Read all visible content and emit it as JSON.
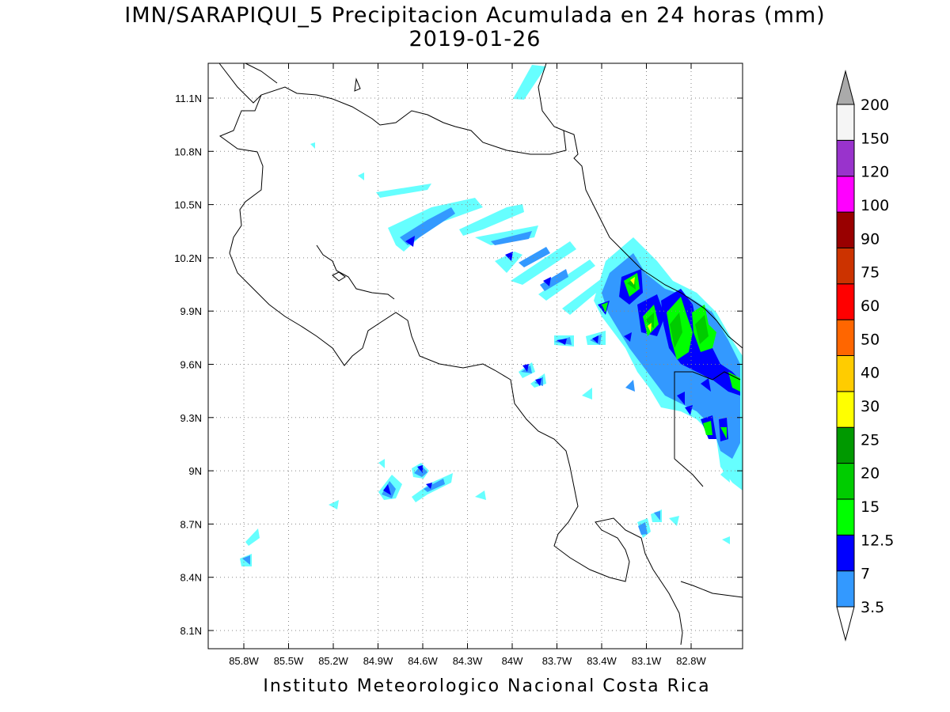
{
  "title": "IMN/SARAPIQUI_5 Precipitacion Acumulada en 24 horas (mm)",
  "date": "2019-01-26",
  "credit": "Instituto Meteorologico Nacional Costa Rica",
  "map": {
    "lon_ticks": [
      "85.8W",
      "85.5W",
      "85.2W",
      "84.9W",
      "84.6W",
      "84.3W",
      "84W",
      "83.7W",
      "83.4W",
      "83.1W",
      "82.8W"
    ],
    "lat_ticks": [
      "11.1N",
      "10.8N",
      "10.5N",
      "10.2N",
      "9.9N",
      "9.6N",
      "9.3N",
      "9N",
      "8.7N",
      "8.4N",
      "8.1N"
    ],
    "grid": true
  },
  "colorbar": {
    "labels": [
      "3.5",
      "7",
      "12.5",
      "15",
      "20",
      "25",
      "30",
      "40",
      "50",
      "60",
      "75",
      "90",
      "100",
      "120",
      "150",
      "200"
    ],
    "colors": [
      "#66ffff",
      "#3399ff",
      "#0000ff",
      "#00ff00",
      "#00cc00",
      "#009900",
      "#ffff00",
      "#ffcc00",
      "#ff6600",
      "#ff0000",
      "#cc3300",
      "#990000",
      "#ff00ff",
      "#9933cc",
      "#f5f5f5",
      "#aaaaaa"
    ],
    "lower_arrow_color": "#ffffff",
    "upper_arrow_color": "#aaaaaa"
  }
}
